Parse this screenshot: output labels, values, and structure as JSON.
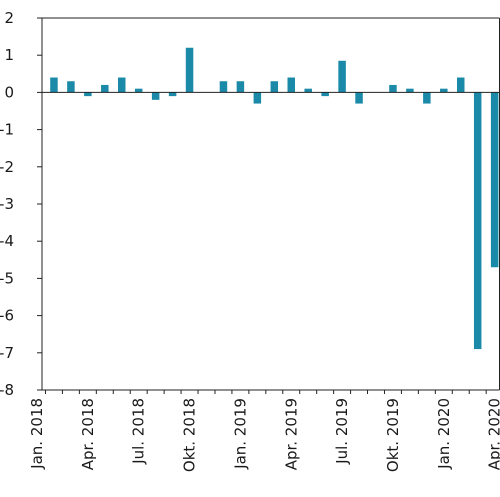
{
  "chart_data": {
    "type": "bar",
    "title": "",
    "xlabel": "",
    "ylabel": "",
    "ylim": [
      -8,
      2
    ],
    "yticks": [
      2,
      1,
      0,
      -1,
      -2,
      -3,
      -4,
      -5,
      -6,
      -7,
      -8
    ],
    "grid": false,
    "legend": "none",
    "bar_color": "#1b8aa8",
    "categories": [
      "Jan. 2018",
      "Feb. 2018",
      "Mar. 2018",
      "Apr. 2018",
      "May 2018",
      "Jun. 2018",
      "Jul. 2018",
      "Aug. 2018",
      "Sep. 2018",
      "Okt. 2018",
      "Nov. 2018",
      "Dec. 2018",
      "Jan. 2019",
      "Feb. 2019",
      "Mar. 2019",
      "Apr. 2019",
      "May 2019",
      "Jun. 2019",
      "Jul. 2019",
      "Aug. 2019",
      "Sep. 2019",
      "Okt. 2019",
      "Nov. 2019",
      "Dec. 2019",
      "Jan. 2020",
      "Feb. 2020",
      "Mar. 2020",
      "Apr. 2020"
    ],
    "values": [
      0,
      0.4,
      0.3,
      -0.1,
      0.2,
      0.4,
      0.1,
      -0.2,
      -0.1,
      1.2,
      0,
      0.3,
      0.3,
      -0.3,
      0.3,
      0.4,
      0.1,
      -0.1,
      0.85,
      -0.3,
      0,
      0.2,
      0.1,
      -0.3,
      0.1,
      0.4,
      -6.9,
      -4.7
    ],
    "xtick_labels": [
      "Jan. 2018",
      "Apr. 2018",
      "Jul. 2018",
      "Okt. 2018",
      "Jan. 2019",
      "Apr. 2019",
      "Jul. 2019",
      "Okt. 2019",
      "Jan. 2020",
      "Apr. 2020"
    ],
    "xtick_indices": [
      0,
      3,
      6,
      9,
      12,
      15,
      18,
      21,
      24,
      27
    ]
  }
}
